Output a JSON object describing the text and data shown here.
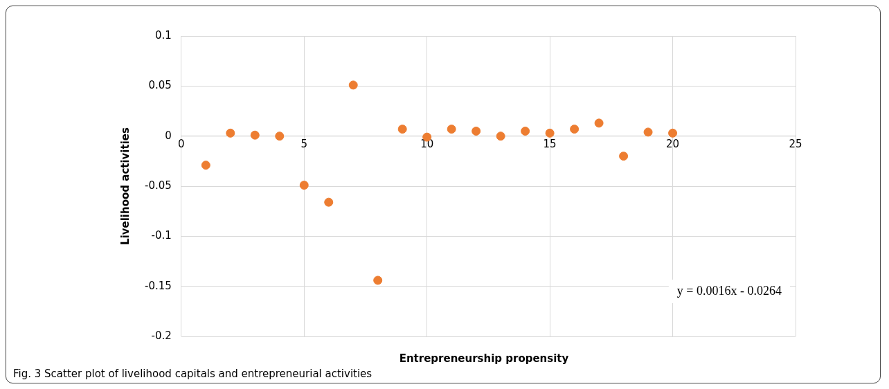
{
  "chart_data": {
    "type": "scatter",
    "xlabel": "Entrepreneurship propensity",
    "ylabel": "Livelihood activities",
    "x": [
      1,
      2,
      3,
      4,
      5,
      6,
      7,
      8,
      9,
      10,
      11,
      12,
      13,
      14,
      15,
      16,
      17,
      18,
      19,
      20
    ],
    "series": [
      {
        "color": "#ed7d31",
        "values": [
          -0.029,
          0.003,
          0.001,
          0,
          -0.049,
          -0.066,
          0.051,
          -0.144,
          0.007,
          -0.001,
          0.007,
          0.005,
          0,
          0.005,
          0.003,
          0.007,
          0.013,
          -0.02,
          0.004,
          0.003
        ]
      }
    ],
    "xlim": [
      0,
      25
    ],
    "xticks": [
      0,
      5,
      10,
      15,
      20,
      25
    ],
    "ylim": [
      -0.2,
      0.1
    ],
    "yticks": [
      -0.2,
      -0.15,
      -0.1,
      -0.05,
      0,
      0.05,
      0.1
    ],
    "grid": true,
    "legend": false,
    "marker": "circle",
    "annotations": [
      "y = 0.0016x - 0.0264",
      "Fig. 3 Scatter plot of livelihood capitals and entrepreneurial activities"
    ]
  }
}
